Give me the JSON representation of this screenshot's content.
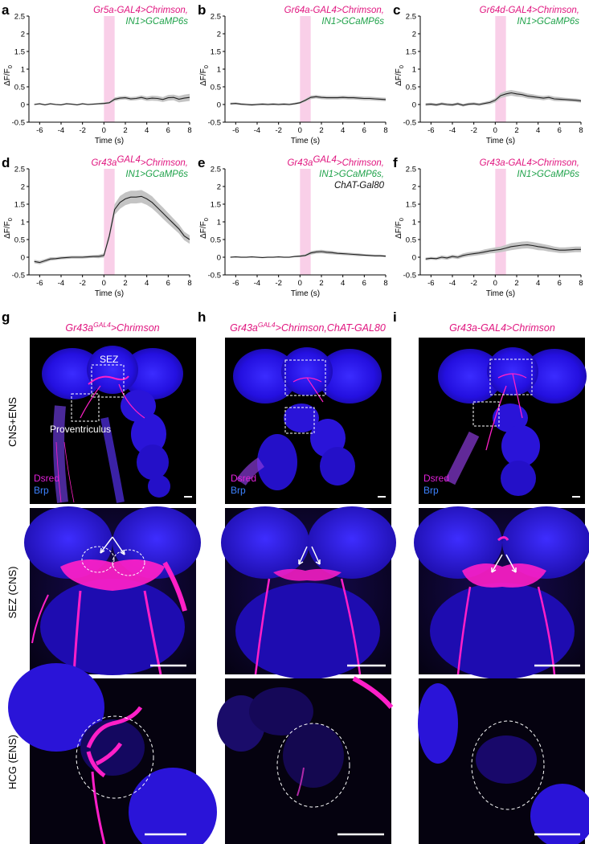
{
  "figure": {
    "plots": [
      {
        "label": "a",
        "lines": [
          {
            "parts": [
              {
                "t": "Gr5a-GAL4>Chrimson,",
                "c": "m"
              }
            ]
          },
          {
            "parts": [
              {
                "t": "IN1>GCaMP6s",
                "c": "g"
              }
            ]
          }
        ]
      },
      {
        "label": "b",
        "lines": [
          {
            "parts": [
              {
                "t": "Gr64a-GAL4>Chrimson,",
                "c": "m"
              }
            ]
          },
          {
            "parts": [
              {
                "t": "IN1>GCaMP6s",
                "c": "g"
              }
            ]
          }
        ]
      },
      {
        "label": "c",
        "lines": [
          {
            "parts": [
              {
                "t": "Gr64d-GAL4>Chrimson,",
                "c": "m"
              }
            ]
          },
          {
            "parts": [
              {
                "t": "IN1>GCaMP6s",
                "c": "g"
              }
            ]
          }
        ]
      },
      {
        "label": "d",
        "lines": [
          {
            "parts": [
              {
                "t": "Gr43a",
                "c": "m"
              },
              {
                "t": "GAL4",
                "c": "m",
                "sup": true
              },
              {
                "t": ">Chrimson,",
                "c": "m"
              }
            ]
          },
          {
            "parts": [
              {
                "t": "IN1>GCaMP6s",
                "c": "g"
              }
            ]
          }
        ]
      },
      {
        "label": "e",
        "lines": [
          {
            "parts": [
              {
                "t": "Gr43a",
                "c": "m"
              },
              {
                "t": "GAL4",
                "c": "m",
                "sup": true
              },
              {
                "t": ">Chrimson,",
                "c": "m"
              }
            ]
          },
          {
            "parts": [
              {
                "t": "IN1>GCaMP6s,",
                "c": "g"
              }
            ]
          },
          {
            "parts": [
              {
                "t": "ChAT-Gal80",
                "c": "k"
              }
            ]
          }
        ]
      },
      {
        "label": "f",
        "lines": [
          {
            "parts": [
              {
                "t": "Gr43a-GAL4>Chrimson,",
                "c": "m"
              }
            ]
          },
          {
            "parts": [
              {
                "t": "IN1>GCaMP6s",
                "c": "g"
              }
            ]
          }
        ]
      }
    ],
    "axes": {
      "ylabel_main": "ΔF/F",
      "ylabel_sub": "0",
      "xlabel": "Time (s)",
      "yticks": [
        "2.5",
        "2",
        "1.5",
        "1",
        "0.5",
        "0",
        "-0.5"
      ],
      "xticks": [
        "-6",
        "-4",
        "-2",
        "0",
        "2",
        "4",
        "6",
        "8"
      ]
    },
    "images": {
      "columns": [
        {
          "label": "g",
          "heading": [
            {
              "t": "Gr43a",
              "sup": false
            },
            {
              "t": "GAL4",
              "sup": true
            },
            {
              "t": ">Chrimson",
              "sup": false
            }
          ]
        },
        {
          "label": "h",
          "heading": [
            {
              "t": "Gr43a",
              "sup": false
            },
            {
              "t": "GAL4",
              "sup": true
            },
            {
              "t": ">Chrimson,ChAT-GAL80",
              "sup": false
            }
          ]
        },
        {
          "label": "i",
          "heading": [
            {
              "t": "Gr43a-GAL4>Chrimson",
              "sup": false
            }
          ]
        }
      ],
      "rows": [
        "CNS+ENS",
        "SEZ (CNS)",
        "HCG (ENS)"
      ],
      "annotations": {
        "sez": "SEZ",
        "proventriculus": "Proventriculus"
      },
      "channels": {
        "dsred": "Dsred",
        "brp": "Brp"
      }
    },
    "colors": {
      "magenta": "#e0157f",
      "green": "#1fa24a",
      "stim": "#f9cfe8",
      "trace": "#222222",
      "sem": "#c4c4c4",
      "tissue_blue": "#2a10e8",
      "neuron_magenta": "#ff1fc8"
    }
  },
  "chart_data": [
    {
      "panel": "a",
      "type": "line",
      "xlabel": "Time (s)",
      "ylabel": "ΔF/F0",
      "xlim": [
        -7,
        8
      ],
      "ylim": [
        -0.5,
        2.5
      ],
      "stimulus": [
        0,
        1
      ],
      "x": [
        -6.5,
        -6,
        -5.5,
        -5,
        -4.5,
        -4,
        -3.5,
        -3,
        -2.5,
        -2,
        -1.5,
        -1,
        -0.5,
        0,
        0.5,
        1,
        1.5,
        2,
        2.5,
        3,
        3.5,
        4,
        4.5,
        5,
        5.5,
        6,
        6.5,
        7,
        7.5,
        8
      ],
      "y": [
        0,
        0.02,
        -0.01,
        0.02,
        0,
        -0.01,
        0.02,
        0.01,
        -0.01,
        0.02,
        0,
        0.01,
        0.02,
        0.03,
        0.05,
        0.15,
        0.18,
        0.19,
        0.16,
        0.17,
        0.2,
        0.16,
        0.18,
        0.17,
        0.14,
        0.19,
        0.2,
        0.15,
        0.18,
        0.2
      ],
      "sem": [
        0.02,
        0.02,
        0.02,
        0.02,
        0.02,
        0.02,
        0.02,
        0.02,
        0.02,
        0.02,
        0.02,
        0.02,
        0.02,
        0.03,
        0.03,
        0.05,
        0.05,
        0.05,
        0.05,
        0.05,
        0.06,
        0.06,
        0.07,
        0.07,
        0.07,
        0.08,
        0.08,
        0.09,
        0.1,
        0.1
      ]
    },
    {
      "panel": "b",
      "type": "line",
      "xlabel": "Time (s)",
      "ylabel": "ΔF/F0",
      "xlim": [
        -7,
        8
      ],
      "ylim": [
        -0.5,
        2.5
      ],
      "stimulus": [
        0,
        1
      ],
      "x": [
        -6.5,
        -6,
        -5.5,
        -5,
        -4.5,
        -4,
        -3.5,
        -3,
        -2.5,
        -2,
        -1.5,
        -1,
        -0.5,
        0,
        0.5,
        1,
        1.5,
        2,
        2.5,
        3,
        3.5,
        4,
        4.5,
        5,
        5.5,
        6,
        6.5,
        7,
        7.5,
        8
      ],
      "y": [
        0.02,
        0.03,
        0.01,
        0,
        -0.01,
        0,
        0.01,
        0,
        0.01,
        0,
        0.01,
        0,
        0.02,
        0.05,
        0.12,
        0.2,
        0.22,
        0.2,
        0.19,
        0.19,
        0.19,
        0.2,
        0.19,
        0.19,
        0.18,
        0.17,
        0.17,
        0.16,
        0.15,
        0.14
      ],
      "sem": [
        0.03,
        0.03,
        0.03,
        0.03,
        0.03,
        0.03,
        0.03,
        0.03,
        0.03,
        0.03,
        0.03,
        0.03,
        0.03,
        0.03,
        0.04,
        0.05,
        0.05,
        0.05,
        0.05,
        0.05,
        0.05,
        0.05,
        0.05,
        0.05,
        0.05,
        0.05,
        0.05,
        0.05,
        0.05,
        0.05
      ]
    },
    {
      "panel": "c",
      "type": "line",
      "xlabel": "Time (s)",
      "ylabel": "ΔF/F0",
      "xlim": [
        -7,
        8
      ],
      "ylim": [
        -0.5,
        2.5
      ],
      "stimulus": [
        0,
        1
      ],
      "x": [
        -6.5,
        -6,
        -5.5,
        -5,
        -4.5,
        -4,
        -3.5,
        -3,
        -2.5,
        -2,
        -1.5,
        -1,
        -0.5,
        0,
        0.5,
        1,
        1.5,
        2,
        2.5,
        3,
        3.5,
        4,
        4.5,
        5,
        5.5,
        6,
        6.5,
        7,
        7.5,
        8
      ],
      "y": [
        0,
        0.01,
        -0.01,
        0.02,
        0,
        -0.01,
        0.02,
        -0.02,
        0.01,
        0.02,
        0,
        0.03,
        0.06,
        0.12,
        0.25,
        0.3,
        0.33,
        0.3,
        0.28,
        0.24,
        0.22,
        0.2,
        0.18,
        0.2,
        0.16,
        0.15,
        0.14,
        0.13,
        0.12,
        0.1
      ],
      "sem": [
        0.04,
        0.04,
        0.04,
        0.04,
        0.04,
        0.04,
        0.04,
        0.04,
        0.04,
        0.04,
        0.04,
        0.04,
        0.05,
        0.06,
        0.07,
        0.08,
        0.08,
        0.08,
        0.07,
        0.07,
        0.07,
        0.06,
        0.06,
        0.06,
        0.06,
        0.06,
        0.05,
        0.05,
        0.05,
        0.05
      ]
    },
    {
      "panel": "d",
      "type": "line",
      "xlabel": "Time (s)",
      "ylabel": "ΔF/F0",
      "xlim": [
        -7,
        8
      ],
      "ylim": [
        -0.5,
        2.5
      ],
      "stimulus": [
        0,
        1
      ],
      "x": [
        -6.5,
        -6,
        -5.5,
        -5,
        -4.5,
        -4,
        -3.5,
        -3,
        -2.5,
        -2,
        -1.5,
        -1,
        -0.5,
        0,
        0.5,
        1,
        1.5,
        2,
        2.5,
        3,
        3.5,
        4,
        4.5,
        5,
        5.5,
        6,
        6.5,
        7,
        7.5,
        8
      ],
      "y": [
        -0.12,
        -0.15,
        -0.1,
        -0.05,
        -0.04,
        -0.02,
        -0.01,
        0,
        0,
        0,
        0.01,
        0.02,
        0.02,
        0.05,
        0.6,
        1.35,
        1.55,
        1.65,
        1.7,
        1.7,
        1.72,
        1.65,
        1.55,
        1.4,
        1.25,
        1.1,
        0.95,
        0.8,
        0.6,
        0.5
      ],
      "sem": [
        0.05,
        0.05,
        0.05,
        0.05,
        0.04,
        0.04,
        0.04,
        0.04,
        0.04,
        0.04,
        0.04,
        0.04,
        0.05,
        0.06,
        0.1,
        0.15,
        0.18,
        0.18,
        0.18,
        0.18,
        0.18,
        0.17,
        0.17,
        0.16,
        0.16,
        0.15,
        0.14,
        0.13,
        0.12,
        0.12
      ]
    },
    {
      "panel": "e",
      "type": "line",
      "xlabel": "Time (s)",
      "ylabel": "ΔF/F0",
      "xlim": [
        -7,
        8
      ],
      "ylim": [
        -0.5,
        2.5
      ],
      "stimulus": [
        0,
        1
      ],
      "x": [
        -6.5,
        -6,
        -5.5,
        -5,
        -4.5,
        -4,
        -3.5,
        -3,
        -2.5,
        -2,
        -1.5,
        -1,
        -0.5,
        0,
        0.5,
        1,
        1.5,
        2,
        2.5,
        3,
        3.5,
        4,
        4.5,
        5,
        5.5,
        6,
        6.5,
        7,
        7.5,
        8
      ],
      "y": [
        0,
        0.01,
        0,
        0,
        0.01,
        0,
        -0.01,
        0,
        0,
        0.01,
        0,
        0,
        0.02,
        0.03,
        0.05,
        0.12,
        0.15,
        0.16,
        0.14,
        0.13,
        0.11,
        0.1,
        0.09,
        0.08,
        0.07,
        0.06,
        0.05,
        0.04,
        0.04,
        0.03
      ],
      "sem": [
        0.02,
        0.02,
        0.02,
        0.02,
        0.02,
        0.02,
        0.02,
        0.02,
        0.02,
        0.02,
        0.02,
        0.02,
        0.02,
        0.03,
        0.03,
        0.05,
        0.05,
        0.05,
        0.05,
        0.05,
        0.04,
        0.04,
        0.04,
        0.04,
        0.04,
        0.03,
        0.03,
        0.03,
        0.03,
        0.03
      ]
    },
    {
      "panel": "f",
      "type": "line",
      "xlabel": "Time (s)",
      "ylabel": "ΔF/F0",
      "xlim": [
        -7,
        8
      ],
      "ylim": [
        -0.5,
        2.5
      ],
      "stimulus": [
        0,
        1
      ],
      "x": [
        -6.5,
        -6,
        -5.5,
        -5,
        -4.5,
        -4,
        -3.5,
        -3,
        -2.5,
        -2,
        -1.5,
        -1,
        -0.5,
        0,
        0.5,
        1,
        1.5,
        2,
        2.5,
        3,
        3.5,
        4,
        4.5,
        5,
        5.5,
        6,
        6.5,
        7,
        7.5,
        8
      ],
      "y": [
        -0.05,
        -0.03,
        -0.04,
        0,
        -0.02,
        0.02,
        0,
        0.05,
        0.08,
        0.1,
        0.12,
        0.15,
        0.18,
        0.2,
        0.22,
        0.26,
        0.3,
        0.32,
        0.34,
        0.35,
        0.33,
        0.3,
        0.28,
        0.25,
        0.22,
        0.2,
        0.2,
        0.21,
        0.22,
        0.22
      ],
      "sem": [
        0.04,
        0.04,
        0.04,
        0.05,
        0.05,
        0.05,
        0.05,
        0.06,
        0.06,
        0.06,
        0.06,
        0.07,
        0.07,
        0.08,
        0.08,
        0.09,
        0.1,
        0.1,
        0.1,
        0.1,
        0.1,
        0.1,
        0.09,
        0.09,
        0.08,
        0.08,
        0.08,
        0.08,
        0.08,
        0.08
      ]
    }
  ]
}
